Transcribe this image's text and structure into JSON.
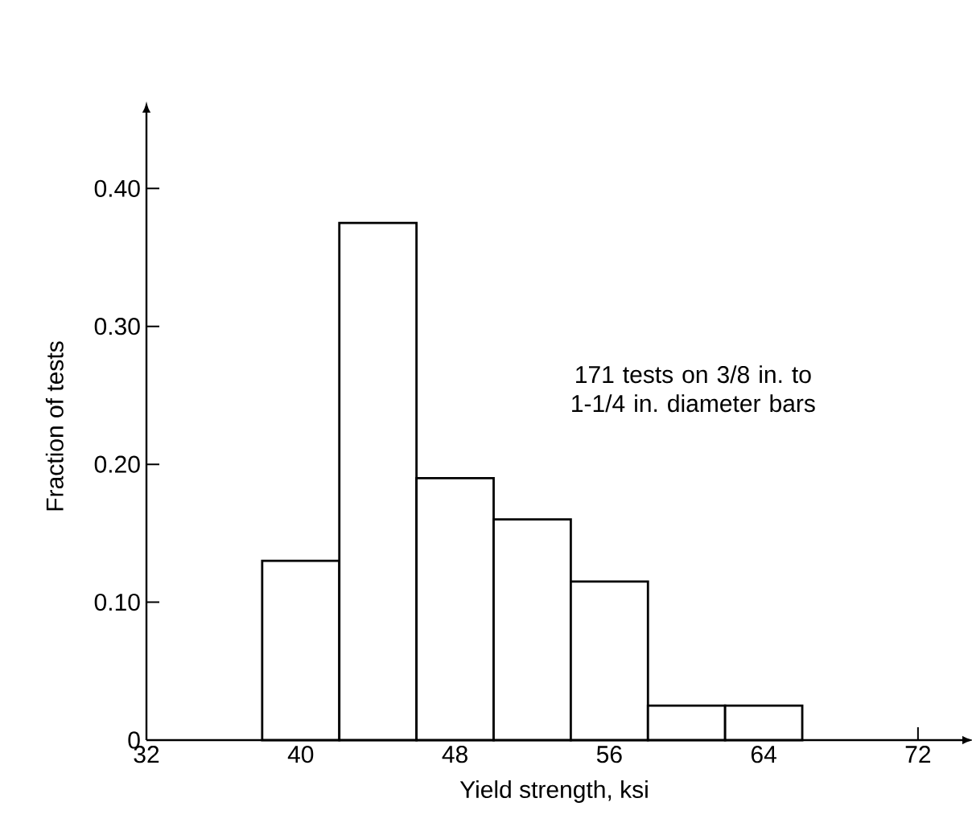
{
  "chart_data": {
    "type": "histogram",
    "xlabel": "Yield strength, ksi",
    "ylabel": "Fraction of tests",
    "bins": [
      38,
      42,
      46,
      50,
      54,
      58,
      62,
      66
    ],
    "values": [
      0.13,
      0.375,
      0.19,
      0.16,
      0.115,
      0.025,
      0.025
    ],
    "xlim": [
      32,
      74.3
    ],
    "ylim": [
      0,
      0.455
    ],
    "xticks": [
      32,
      40,
      48,
      56,
      64,
      72
    ],
    "yticks": [
      0,
      {
        "value": 0.1,
        "label": "0.10"
      },
      {
        "value": 0.2,
        "label": "0.20"
      },
      {
        "value": 0.3,
        "label": "0.30"
      },
      {
        "value": 0.4,
        "label": "0.40"
      }
    ],
    "annotations": [
      "171 tests on 3/8 in. to 1-1/4 in. diameter bars"
    ]
  }
}
